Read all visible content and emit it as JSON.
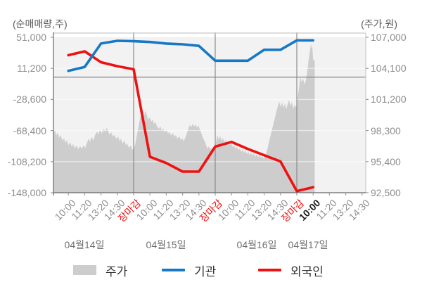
{
  "axes": {
    "left_title": "(순매매량,주)",
    "right_title": "(주가,원)",
    "left_tick_labels": [
      "51,000",
      "11,200",
      "-28,600",
      "-68,400",
      "-108,200",
      "-148,000"
    ],
    "right_tick_labels": [
      "107,000",
      "104,100",
      "101,200",
      "98,300",
      "95,400",
      "92,500"
    ]
  },
  "legend": [
    {
      "label": "주가",
      "type": "area",
      "color": "#cdcdcd"
    },
    {
      "label": "기관",
      "type": "line",
      "color": "#1778c4"
    },
    {
      "label": "외국인",
      "type": "line",
      "color": "#ed1111"
    }
  ],
  "colors": {
    "plot_bg": "#f2f2f2",
    "area_fill": "#cdcdcd",
    "grid_line": "rgba(255,255,255,0.55)",
    "zero_line": "#838383",
    "day_separator": "#838383",
    "frame_dark": "#666666",
    "frame_light": "#c9c9c9",
    "tick_mark": "#999999",
    "institution_line": "#1778c4",
    "foreigner_line": "#ed1111",
    "close_label_red": "#ed1111"
  },
  "chart_data": {
    "type": "mixed-area-line",
    "left_axis": {
      "label": "(순매매량,주)",
      "unit": "주",
      "ticks": [
        51000,
        11200,
        -28600,
        -68400,
        -108200,
        -148000
      ],
      "range": [
        -148000,
        51000
      ]
    },
    "right_axis": {
      "label": "(주가,원)",
      "unit": "원",
      "ticks": [
        107000,
        104100,
        101200,
        98300,
        95400,
        92500
      ],
      "range": [
        92500,
        107000
      ]
    },
    "x_tick_labels": [
      {
        "label": "10:00",
        "style": "normal"
      },
      {
        "label": "11:20",
        "style": "normal"
      },
      {
        "label": "13:20",
        "style": "normal"
      },
      {
        "label": "14:30",
        "style": "normal"
      },
      {
        "label": "장마감",
        "style": "close"
      },
      {
        "label": "10:00",
        "style": "normal"
      },
      {
        "label": "11:20",
        "style": "normal"
      },
      {
        "label": "13:20",
        "style": "normal"
      },
      {
        "label": "14:30",
        "style": "normal"
      },
      {
        "label": "장마감",
        "style": "close"
      },
      {
        "label": "10:00",
        "style": "normal"
      },
      {
        "label": "11:20",
        "style": "normal"
      },
      {
        "label": "13:20",
        "style": "normal"
      },
      {
        "label": "14:30",
        "style": "normal"
      },
      {
        "label": "장마감",
        "style": "close"
      },
      {
        "label": "10:00",
        "style": "current"
      },
      {
        "label": "11:20",
        "style": "normal"
      },
      {
        "label": "13:20",
        "style": "normal"
      },
      {
        "label": "14:30",
        "style": "normal"
      }
    ],
    "day_separator_tick_indexes": [
      4,
      9,
      14
    ],
    "dates": [
      "04월14일",
      "04월15일",
      "04월16일",
      "04월17일"
    ],
    "series": {
      "institution": {
        "name": "기관",
        "type": "line",
        "axis": "left",
        "values": [
          8000,
          13000,
          43000,
          46500,
          46000,
          45000,
          43000,
          42000,
          40000,
          21000,
          21000,
          21000,
          35000,
          35000,
          47000,
          47000
        ]
      },
      "foreigner": {
        "name": "외국인",
        "type": "line",
        "axis": "left",
        "values": [
          28000,
          33000,
          19000,
          14000,
          10000,
          -102000,
          -110000,
          -121000,
          -121000,
          -89000,
          -83000,
          -92000,
          -100000,
          -108000,
          -146000,
          -141000
        ]
      },
      "price": {
        "name": "주가",
        "type": "area",
        "axis": "right",
        "x_unit": "plot-px-offset",
        "points": [
          [
            0,
            98100
          ],
          [
            2,
            98350
          ],
          [
            4,
            97850
          ],
          [
            6,
            98100
          ],
          [
            8,
            97600
          ],
          [
            10,
            97900
          ],
          [
            13,
            97350
          ],
          [
            15,
            97600
          ],
          [
            17,
            97150
          ],
          [
            19,
            97400
          ],
          [
            21,
            96950
          ],
          [
            24,
            97200
          ],
          [
            26,
            96800
          ],
          [
            28,
            97050
          ],
          [
            30,
            96650
          ],
          [
            33,
            96900
          ],
          [
            35,
            96550
          ],
          [
            38,
            96850
          ],
          [
            40,
            96600
          ],
          [
            43,
            96950
          ],
          [
            45,
            96650
          ],
          [
            47,
            97050
          ],
          [
            50,
            97550
          ],
          [
            52,
            97250
          ],
          [
            54,
            97700
          ],
          [
            57,
            97400
          ],
          [
            59,
            97850
          ],
          [
            62,
            98200
          ],
          [
            64,
            97950
          ],
          [
            66,
            98350
          ],
          [
            69,
            98050
          ],
          [
            71,
            98500
          ],
          [
            73,
            98250
          ],
          [
            76,
            98550
          ],
          [
            78,
            98200
          ],
          [
            80,
            97900
          ],
          [
            82,
            98150
          ],
          [
            85,
            97700
          ],
          [
            87,
            97950
          ],
          [
            89,
            97500
          ],
          [
            92,
            97750
          ],
          [
            94,
            97300
          ],
          [
            96,
            97550
          ],
          [
            98,
            97100
          ],
          [
            101,
            97350
          ],
          [
            103,
            96900
          ],
          [
            105,
            97100
          ],
          [
            107,
            96700
          ],
          [
            110,
            96900
          ],
          [
            112,
            96500
          ],
          [
            114,
            96600
          ],
          [
            116,
            96950
          ],
          [
            118,
            97650
          ],
          [
            120,
            98350
          ],
          [
            122,
            99050
          ],
          [
            124,
            99650
          ],
          [
            126,
            100050
          ],
          [
            127,
            100200
          ],
          [
            129,
            99700
          ],
          [
            131,
            100150
          ],
          [
            133,
            99650
          ],
          [
            135,
            99300
          ],
          [
            137,
            99550
          ],
          [
            139,
            99100
          ],
          [
            141,
            99350
          ],
          [
            143,
            98900
          ],
          [
            145,
            99100
          ],
          [
            147,
            98700
          ],
          [
            150,
            98450
          ],
          [
            152,
            98700
          ],
          [
            154,
            98300
          ],
          [
            156,
            98500
          ],
          [
            158,
            98150
          ],
          [
            161,
            98350
          ],
          [
            163,
            98000
          ],
          [
            165,
            98200
          ],
          [
            167,
            97850
          ],
          [
            170,
            98050
          ],
          [
            172,
            97700
          ],
          [
            174,
            97900
          ],
          [
            176,
            97550
          ],
          [
            179,
            97750
          ],
          [
            181,
            97400
          ],
          [
            183,
            97600
          ],
          [
            185,
            97300
          ],
          [
            188,
            97700
          ],
          [
            190,
            98100
          ],
          [
            192,
            98500
          ],
          [
            194,
            98850
          ],
          [
            196,
            98600
          ],
          [
            198,
            98950
          ],
          [
            200,
            98650
          ],
          [
            202,
            98900
          ],
          [
            204,
            98550
          ],
          [
            206,
            98800
          ],
          [
            208,
            98400
          ],
          [
            210,
            98100
          ],
          [
            212,
            97700
          ],
          [
            215,
            97300
          ],
          [
            217,
            96950
          ],
          [
            219,
            96600
          ],
          [
            221,
            96850
          ],
          [
            223,
            96500
          ],
          [
            225,
            96700
          ],
          [
            227,
            96400
          ],
          [
            229,
            96650
          ],
          [
            231,
            97150
          ],
          [
            233,
            97900
          ],
          [
            235,
            97450
          ],
          [
            237,
            97800
          ],
          [
            239,
            97350
          ],
          [
            241,
            97600
          ],
          [
            243,
            97200
          ],
          [
            245,
            97450
          ],
          [
            247,
            97050
          ],
          [
            249,
            97300
          ],
          [
            251,
            96900
          ],
          [
            253,
            97100
          ],
          [
            255,
            96750
          ],
          [
            257,
            96950
          ],
          [
            259,
            96600
          ],
          [
            261,
            96800
          ],
          [
            263,
            96450
          ],
          [
            265,
            96650
          ],
          [
            267,
            96300
          ],
          [
            269,
            96550
          ],
          [
            271,
            96200
          ],
          [
            273,
            96450
          ],
          [
            275,
            96100
          ],
          [
            277,
            96350
          ],
          [
            279,
            96000
          ],
          [
            281,
            96250
          ],
          [
            283,
            95950
          ],
          [
            285,
            96200
          ],
          [
            287,
            95850
          ],
          [
            289,
            96100
          ],
          [
            291,
            95800
          ],
          [
            293,
            96050
          ],
          [
            295,
            95750
          ],
          [
            297,
            95950
          ],
          [
            299,
            95650
          ],
          [
            301,
            95900
          ],
          [
            303,
            96300
          ],
          [
            305,
            96800
          ],
          [
            307,
            97400
          ],
          [
            309,
            97900
          ],
          [
            311,
            98450
          ],
          [
            313,
            99000
          ],
          [
            315,
            99500
          ],
          [
            317,
            100050
          ],
          [
            319,
            100550
          ],
          [
            321,
            101000
          ],
          [
            323,
            100500
          ],
          [
            325,
            100950
          ],
          [
            327,
            100400
          ],
          [
            329,
            100850
          ],
          [
            331,
            100300
          ],
          [
            333,
            100750
          ],
          [
            335,
            101150
          ],
          [
            337,
            100600
          ],
          [
            339,
            100950
          ],
          [
            341,
            100350
          ],
          [
            343,
            100700
          ],
          [
            345,
            100450
          ],
          [
            347,
            101300
          ],
          [
            349,
            102200
          ],
          [
            351,
            103300
          ],
          [
            353,
            102800
          ],
          [
            355,
            103150
          ],
          [
            357,
            102600
          ],
          [
            359,
            103000
          ],
          [
            361,
            103900
          ],
          [
            363,
            105000
          ],
          [
            365,
            105900
          ],
          [
            366,
            106400
          ],
          [
            367,
            105900
          ],
          [
            368,
            106200
          ],
          [
            369,
            105100
          ],
          [
            370,
            104800
          ],
          [
            371.5,
            104900
          ]
        ]
      }
    }
  }
}
